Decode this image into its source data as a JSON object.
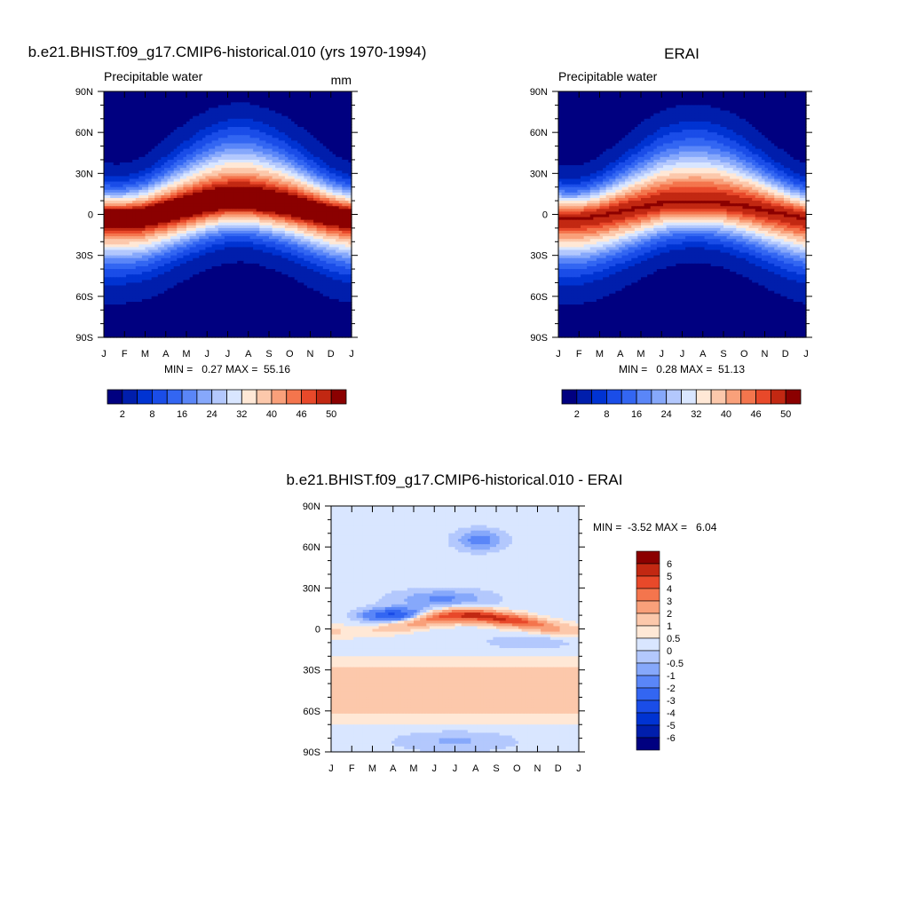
{
  "panels": {
    "model": {
      "title": "b.e21.BHIST.f09_g17.CMIP6-historical.010 (yrs 1970-1994)",
      "field_label": "Precipitable water",
      "units": "mm",
      "stats": "MIN =   0.27 MAX =  55.16"
    },
    "obs": {
      "title": "ERAI",
      "field_label": "Precipitable water",
      "stats": "MIN =   0.28 MAX =  51.13"
    },
    "diff": {
      "title": "b.e21.BHIST.f09_g17.CMIP6-historical.010 - ERAI",
      "stats": "MIN =  -3.52 MAX =   6.04"
    }
  },
  "chart_data": [
    {
      "type": "heatmap",
      "title": "b.e21.BHIST.f09_g17.CMIP6-historical.010 (yrs 1970-1994)",
      "x_ticks": [
        "J",
        "F",
        "M",
        "A",
        "M",
        "J",
        "J",
        "A",
        "S",
        "O",
        "N",
        "D",
        "J"
      ],
      "y_ticks": [
        "90N",
        "60N",
        "30N",
        "0",
        "30S",
        "60S",
        "90S"
      ],
      "ylim": [
        -90,
        90
      ],
      "levels": [
        2,
        5,
        8,
        12,
        16,
        20,
        24,
        28,
        32,
        36,
        40,
        43,
        46,
        48,
        50
      ],
      "colorbar_labels": [
        "2",
        "8",
        "16",
        "24",
        "32",
        "40",
        "46",
        "50"
      ],
      "min": 0.27,
      "max": 55.16,
      "field": {
        "peak": 55.16,
        "itcz_lat": [
          -2,
          -2,
          -1,
          2,
          5,
          8,
          10,
          10,
          8,
          6,
          3,
          0,
          -2
        ]
      }
    },
    {
      "type": "heatmap",
      "title": "ERAI",
      "x_ticks": [
        "J",
        "F",
        "M",
        "A",
        "M",
        "J",
        "J",
        "A",
        "S",
        "O",
        "N",
        "D",
        "J"
      ],
      "y_ticks": [
        "90N",
        "60N",
        "30N",
        "0",
        "30S",
        "60S",
        "90S"
      ],
      "ylim": [
        -90,
        90
      ],
      "levels": [
        2,
        5,
        8,
        12,
        16,
        20,
        24,
        28,
        32,
        36,
        40,
        43,
        46,
        48,
        50
      ],
      "colorbar_labels": [
        "2",
        "8",
        "16",
        "24",
        "32",
        "40",
        "46",
        "50"
      ],
      "min": 0.28,
      "max": 51.13,
      "field": {
        "peak": 51.13,
        "itcz_lat": [
          -3,
          -3,
          -1,
          2,
          5,
          8,
          9,
          9,
          8,
          6,
          3,
          0,
          -3
        ]
      }
    },
    {
      "type": "heatmap",
      "title": "b.e21.BHIST.f09_g17.CMIP6-historical.010 - ERAI",
      "x_ticks": [
        "J",
        "F",
        "M",
        "A",
        "M",
        "J",
        "J",
        "A",
        "S",
        "O",
        "N",
        "D",
        "J"
      ],
      "y_ticks": [
        "90N",
        "60N",
        "30N",
        "0",
        "30S",
        "60S",
        "90S"
      ],
      "ylim": [
        -90,
        90
      ],
      "levels": [
        -6,
        -5,
        -4,
        -3,
        -2,
        -1,
        -0.5,
        0,
        0.5,
        1,
        2,
        3,
        4,
        5,
        6
      ],
      "colorbar_labels": [
        "6",
        "5",
        "4",
        "3",
        "2",
        "1",
        "0.5",
        "0",
        "-0.5",
        "-1",
        "-2",
        "-3",
        "-4",
        "-5",
        "-6"
      ],
      "min": -3.52,
      "max": 6.04
    }
  ],
  "colors": {
    "abs": [
      "#000080",
      "#001eac",
      "#0033d2",
      "#1a4de8",
      "#3366f2",
      "#5a86f8",
      "#86a8fb",
      "#b3c8fd",
      "#d9e6ff",
      "#ffe8d6",
      "#fcc8ab",
      "#f9a07a",
      "#f4754d",
      "#e8492a",
      "#c22812",
      "#8b0000"
    ],
    "diff": [
      "#000080",
      "#001eac",
      "#0033d2",
      "#1a4de8",
      "#3366f2",
      "#5a86f8",
      "#86a8fb",
      "#b3c8fd",
      "#d9e6ff",
      "#ffe8d6",
      "#fcc8ab",
      "#f9a07a",
      "#f4754d",
      "#e8492a",
      "#c22812",
      "#8b0000"
    ]
  }
}
